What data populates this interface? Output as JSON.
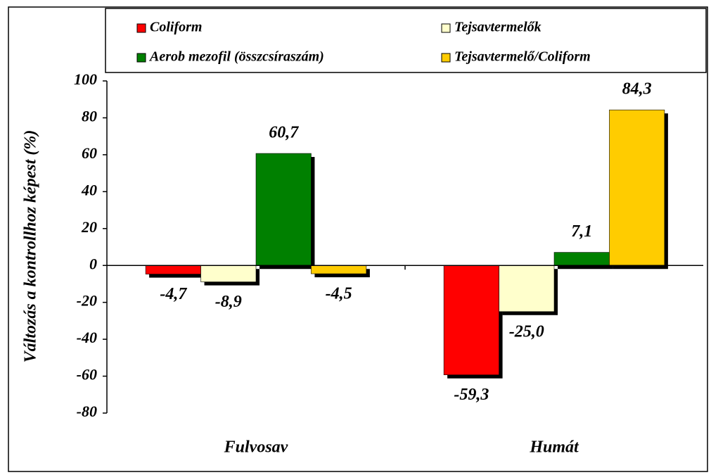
{
  "chart_data": {
    "type": "bar",
    "ylabel": "Változás a kontrollhoz képest (%)",
    "categories": [
      "Fulvosav",
      "Humát"
    ],
    "series": [
      {
        "name": "Coliform",
        "color": "#ff0000",
        "values": [
          -4.7,
          -59.3
        ],
        "value_labels": [
          "-4,7",
          "-59,3"
        ]
      },
      {
        "name": "Tejsavtermelők",
        "color": "#ffffcc",
        "values": [
          -8.9,
          -25.0
        ],
        "value_labels": [
          "-8,9",
          "-25,0"
        ]
      },
      {
        "name": "Aerob mezofil (összcsíraszám)",
        "color": "#008000",
        "values": [
          60.7,
          7.1
        ],
        "value_labels": [
          "60,7",
          "7,1"
        ]
      },
      {
        "name": "Tejsavtermelő/Coliform",
        "color": "#ffcc00",
        "values": [
          -4.5,
          84.3
        ],
        "value_labels": [
          "-4,5",
          "84,3"
        ]
      }
    ],
    "ylim": [
      -80,
      100
    ],
    "yticks": [
      -80,
      -60,
      -40,
      -20,
      0,
      20,
      40,
      60,
      80,
      100
    ],
    "grid": false
  }
}
